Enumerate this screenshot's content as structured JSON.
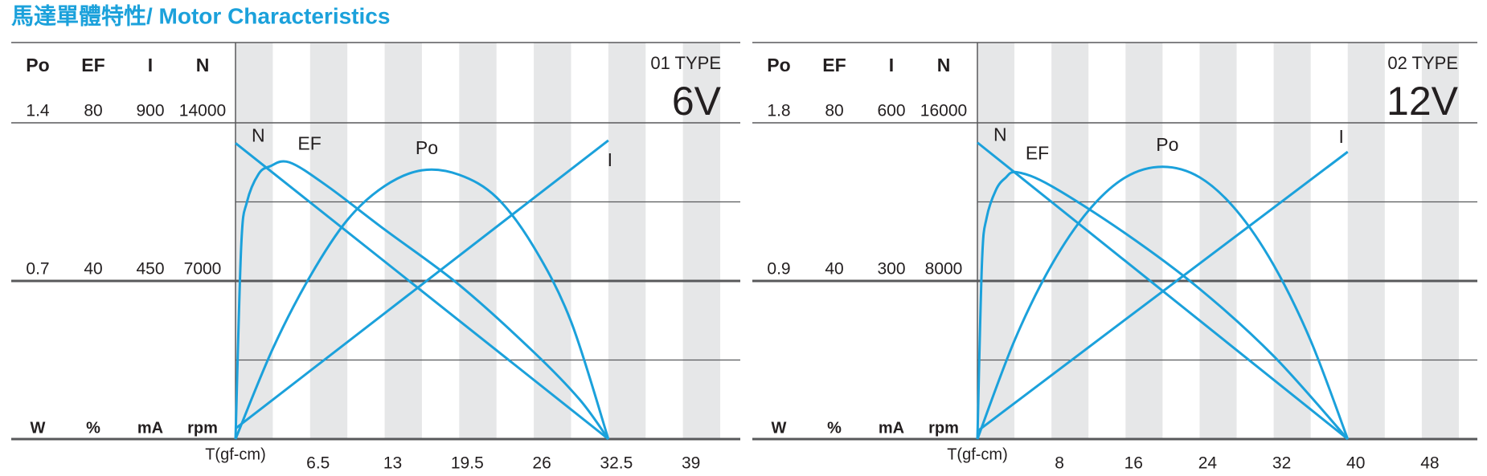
{
  "title": "馬達單體特性/ Motor Characteristics",
  "chart_data": [
    {
      "type": "line",
      "type_label": "01 TYPE",
      "voltage": "6V",
      "x_label": "T(gf-cm)",
      "xlim": [
        0,
        44
      ],
      "xticks": [
        6.5,
        13,
        19.5,
        26,
        32.5,
        39
      ],
      "series": [
        {
          "name": "Po",
          "unit": "W",
          "color": "#1ba1db",
          "ylim": [
            0,
            1.4
          ],
          "yticks": [
            0.7,
            1.4
          ],
          "x": [
            0,
            3.25,
            6.5,
            9.75,
            13,
            16.25,
            19.5,
            22.75,
            26,
            29.25,
            32.5
          ],
          "values": [
            0,
            0.4,
            0.72,
            0.97,
            1.12,
            1.19,
            1.17,
            1.07,
            0.85,
            0.52,
            0
          ]
        },
        {
          "name": "EF",
          "unit": "%",
          "color": "#1ba1db",
          "ylim": [
            0,
            80
          ],
          "yticks": [
            40,
            80
          ],
          "x": [
            0,
            0.5,
            1,
            2,
            3,
            4.7,
            8,
            13,
            19.5,
            26,
            30,
            32.5
          ],
          "values": [
            0,
            49,
            60,
            67,
            69,
            70,
            64,
            53,
            39,
            22,
            10,
            0
          ]
        },
        {
          "name": "I",
          "unit": "mA",
          "color": "#1ba1db",
          "ylim": [
            0,
            900
          ],
          "yticks": [
            450,
            900
          ],
          "x": [
            0,
            32.5
          ],
          "values": [
            30,
            850
          ]
        },
        {
          "name": "N",
          "unit": "rpm",
          "color": "#1ba1db",
          "ylim": [
            0,
            14000
          ],
          "yticks": [
            7000,
            14000
          ],
          "x": [
            0,
            32.5
          ],
          "values": [
            13100,
            0
          ]
        }
      ]
    },
    {
      "type": "line",
      "type_label": "02 TYPE",
      "voltage": "12V",
      "x_label": "T(gf-cm)",
      "xlim": [
        0,
        54
      ],
      "xticks": [
        8,
        16,
        24,
        32,
        40,
        48
      ],
      "series": [
        {
          "name": "Po",
          "unit": "W",
          "color": "#1ba1db",
          "ylim": [
            0,
            1.8
          ],
          "yticks": [
            0.9,
            1.8
          ],
          "x": [
            0,
            4,
            8,
            12,
            16,
            20,
            24,
            28,
            32,
            36,
            40
          ],
          "values": [
            0,
            0.56,
            0.99,
            1.3,
            1.49,
            1.55,
            1.49,
            1.3,
            0.99,
            0.56,
            0
          ]
        },
        {
          "name": "EF",
          "unit": "%",
          "color": "#1ba1db",
          "ylim": [
            0,
            80
          ],
          "yticks": [
            40,
            80
          ],
          "x": [
            0,
            0.5,
            1,
            2,
            3,
            4.3,
            8,
            16,
            24,
            32,
            40
          ],
          "values": [
            0,
            45,
            56,
            63,
            66,
            67.5,
            64,
            52,
            38,
            21,
            0
          ]
        },
        {
          "name": "I",
          "unit": "mA",
          "color": "#1ba1db",
          "ylim": [
            0,
            600
          ],
          "yticks": [
            300,
            600
          ],
          "x": [
            0,
            40
          ],
          "values": [
            15,
            545
          ]
        },
        {
          "name": "N",
          "unit": "rpm",
          "color": "#1ba1db",
          "ylim": [
            0,
            16000
          ],
          "yticks": [
            8000,
            16000
          ],
          "x": [
            0,
            40
          ],
          "values": [
            15000,
            0
          ]
        }
      ]
    }
  ]
}
